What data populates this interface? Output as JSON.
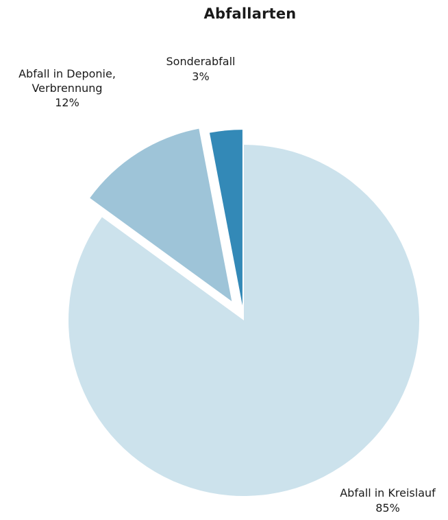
{
  "chart_data": {
    "type": "pie",
    "title": "Abfallarten",
    "slices": [
      {
        "name": "Abfall in Kreislauf",
        "label_lines": [
          "Abfall in Kreislauf",
          "85%"
        ],
        "value": 85,
        "color": "#cce2ec",
        "exploded": false
      },
      {
        "name": "Abfall in Deponie, Verbrennung",
        "label_lines": [
          "Abfall in Deponie,",
          "Verbrennung",
          "12%"
        ],
        "value": 12,
        "color": "#9ec4d8",
        "exploded": true
      },
      {
        "name": "Sonderabfall",
        "label_lines": [
          "Sonderabfall",
          "3%"
        ],
        "value": 3,
        "color": "#3389b7",
        "exploded": true
      }
    ]
  }
}
